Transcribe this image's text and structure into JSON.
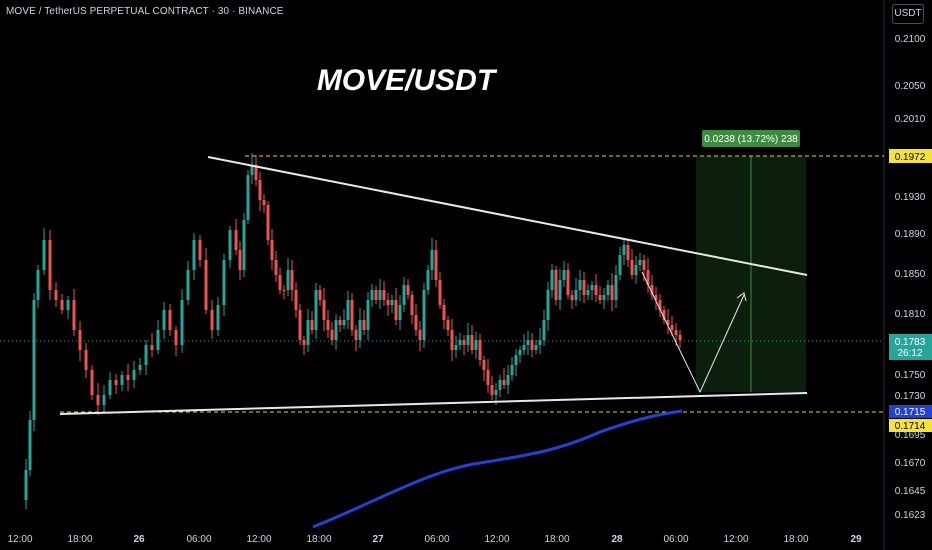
{
  "header": {
    "symbol_line": "MOVE / TetherUS PERPETUAL CONTRACT · 30 · BINANCE",
    "currency_button": "USDT"
  },
  "overlay_title": "MOVE/USDT",
  "colors": {
    "up": "#26a69a",
    "down": "#ef5350",
    "ma": "#2441d6",
    "target_zone": "rgba(56,142,60,0.22)",
    "target_label_bg": "#3d8b40"
  },
  "price_axis": {
    "ticks": [
      "0.2100",
      "0.2050",
      "0.2010",
      "0.1930",
      "0.1890",
      "0.1850",
      "0.1810",
      "0.1750",
      "0.1730",
      "0.1695",
      "0.1670",
      "0.1645",
      "0.1623"
    ]
  },
  "price_tags": {
    "target": "0.1972",
    "current": "0.1783",
    "countdown": "26:12",
    "ma": "0.1715",
    "support": "0.1714"
  },
  "time_axis": {
    "ticks": [
      "12:00",
      "18:00",
      "26",
      "06:00",
      "12:00",
      "18:00",
      "27",
      "06:00",
      "12:00",
      "18:00",
      "28",
      "06:00",
      "12:00",
      "18:00",
      "29"
    ]
  },
  "measure_label": "0.0238 (13.72%) 238"
}
